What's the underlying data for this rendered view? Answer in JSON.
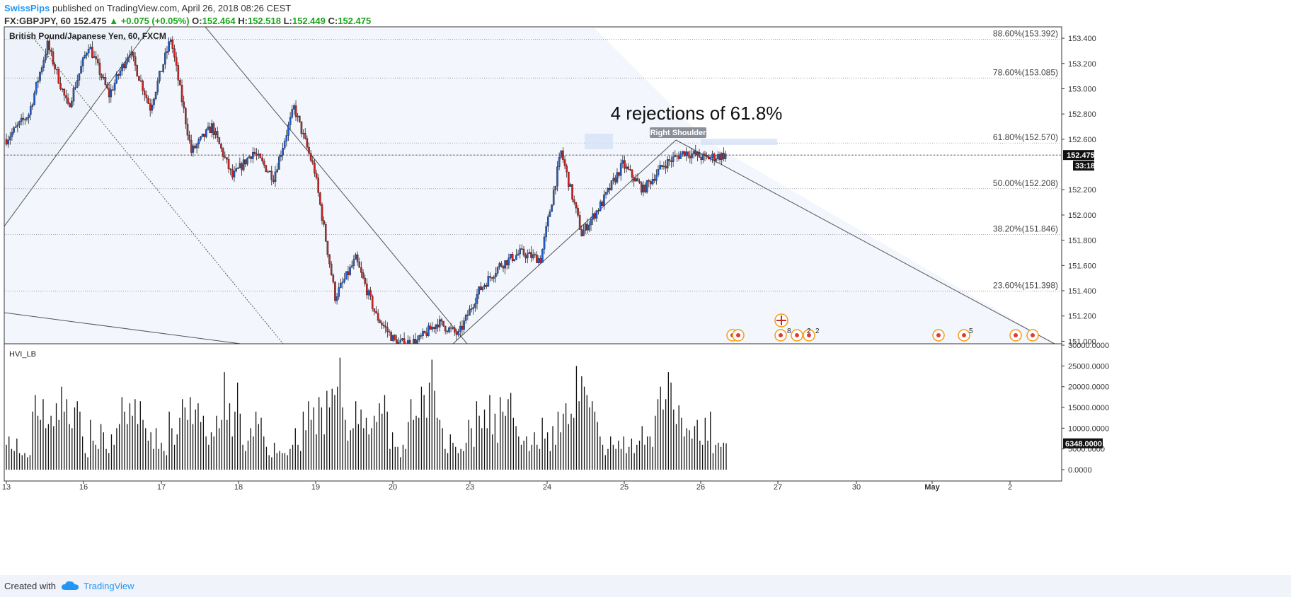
{
  "header": {
    "author": "SwissPips",
    "published_text": "published on TradingView.com, April 26, 2018 08:26 CEST",
    "symbol": "FX:GBPJPY, 60",
    "last": "152.475",
    "change": "+0.075 (+0.05%)",
    "o_label": "O:",
    "o": "152.464",
    "h_label": "H:",
    "h": "152.518",
    "l_label": "L:",
    "l": "152.449",
    "c_label": "C:",
    "c": "152.475"
  },
  "footer": {
    "created_with": "Created with",
    "brand": "TradingView"
  },
  "chart_data": [
    {
      "type": "candlestick",
      "title": "British Pound/Japanese Yen, 60, FXCM",
      "y_ticks": [
        "153.400",
        "153.200",
        "153.000",
        "152.800",
        "152.600",
        "152.200",
        "152.000",
        "151.800",
        "151.600",
        "151.400",
        "151.200",
        "151.000"
      ],
      "ylim": [
        150.98,
        153.49
      ],
      "x_ticks": [
        "13",
        "16",
        "17",
        "18",
        "19",
        "20",
        "23",
        "24",
        "25",
        "26",
        "27",
        "30",
        "May",
        "2"
      ],
      "last_price_label": "152.475",
      "countdown_label": "33:18",
      "fib_levels": [
        {
          "level": 153.392,
          "label": "88.60%(153.392)"
        },
        {
          "level": 153.085,
          "label": "78.60%(153.085)"
        },
        {
          "level": 152.57,
          "label": "61.80%(152.570)"
        },
        {
          "level": 152.208,
          "label": "50.00%(152.208)"
        },
        {
          "level": 151.846,
          "label": "38.20%(151.846)"
        },
        {
          "level": 151.398,
          "label": "23.60%(151.398)"
        }
      ],
      "annotation": "4 rejections of 61.8%",
      "pattern_label": "Right Shoulder",
      "candle_path_points": [
        [
          0,
          152.6
        ],
        [
          12,
          152.8
        ],
        [
          22,
          153.35
        ],
        [
          33,
          152.85
        ],
        [
          44,
          153.35
        ],
        [
          55,
          152.95
        ],
        [
          66,
          153.3
        ],
        [
          77,
          152.85
        ],
        [
          88,
          153.4
        ],
        [
          99,
          152.5
        ],
        [
          110,
          152.7
        ],
        [
          121,
          152.3
        ],
        [
          132,
          152.5
        ],
        [
          143,
          152.3
        ],
        [
          154,
          152.85
        ],
        [
          165,
          152.35
        ],
        [
          176,
          151.35
        ],
        [
          187,
          151.65
        ],
        [
          198,
          151.2
        ],
        [
          209,
          150.98
        ],
        [
          220,
          151.0
        ],
        [
          231,
          151.15
        ],
        [
          242,
          151.05
        ],
        [
          253,
          151.4
        ],
        [
          264,
          151.6
        ],
        [
          275,
          151.7
        ],
        [
          286,
          151.65
        ],
        [
          297,
          152.5
        ],
        [
          308,
          151.85
        ],
        [
          319,
          152.1
        ],
        [
          330,
          152.4
        ],
        [
          341,
          152.2
        ],
        [
          352,
          152.4
        ],
        [
          363,
          152.5
        ],
        [
          374,
          152.45
        ],
        [
          385,
          152.475
        ]
      ],
      "event_markers": [
        {
          "day_pos": 0.89,
          "label": ""
        },
        {
          "day_pos": 0.92,
          "label": "8"
        },
        {
          "day_pos": 0.96,
          "label": "2"
        },
        {
          "day_pos": 1.0,
          "label": "2"
        }
      ]
    },
    {
      "type": "bar",
      "title": "HVI_LB",
      "y_ticks": [
        "30000.0000",
        "25000.0000",
        "20000.0000",
        "15000.0000",
        "10000.0000",
        "5000.0000",
        "0.0000"
      ],
      "ylim": [
        0,
        30000
      ],
      "last_value_label": "6348.0000",
      "values": [
        6000,
        8000,
        5000,
        4500,
        7500,
        4000,
        3500,
        4000,
        3000,
        3500,
        14000,
        18000,
        13000,
        12000,
        17000,
        10000,
        11000,
        13000,
        10500,
        16000,
        12000,
        20000,
        14000,
        17000,
        11000,
        10000,
        15000,
        16500,
        14000,
        8000,
        4000,
        3000,
        12000,
        7000,
        6000,
        5000,
        11000,
        9000,
        5000,
        4000,
        8500,
        6000,
        10000,
        11000,
        17500,
        14000,
        11000,
        16000,
        13000,
        17000,
        11000,
        16500,
        12000,
        10000,
        7000,
        9000,
        5000,
        10000,
        5000,
        6500,
        4500,
        3500,
        14000,
        10000,
        6000,
        8500,
        12500,
        17000,
        15000,
        12000,
        17500,
        11000,
        14500,
        16000,
        11500,
        13000,
        8000,
        6000,
        9000,
        8000,
        13000,
        10000,
        12000,
        23500,
        12000,
        16000,
        8000,
        14000,
        21000,
        13500,
        6000,
        4500,
        7000,
        10000,
        8000,
        14000,
        11000,
        12500,
        8000,
        5500,
        3500,
        3000,
        6500,
        4000,
        4500,
        4000,
        4000,
        3500,
        5000,
        6000,
        10000,
        6000,
        4500,
        14000,
        9500,
        16500,
        12000,
        15000,
        8500,
        17500,
        15000,
        8500,
        19000,
        15000,
        19500,
        18000,
        20000,
        27000,
        15000,
        12000,
        7000,
        9500,
        10000,
        16500,
        11000,
        14500,
        10000,
        12500,
        8500,
        10000,
        13000,
        11500,
        16000,
        13500,
        18000,
        14000,
        5000,
        9000,
        5500,
        5500,
        3000,
        6000,
        5000,
        11500,
        17000,
        12000,
        13000,
        12500,
        20000,
        18000,
        12500,
        21000,
        26500,
        19000,
        12500,
        12000,
        10000,
        5000,
        4000,
        8500,
        6500,
        5500,
        4000,
        5000,
        4500,
        6500,
        12000,
        10000,
        5500,
        16500,
        13000,
        10000,
        14500,
        10000,
        18000,
        8500,
        13500,
        6500,
        17500,
        14000,
        13000,
        17000,
        18500,
        12500,
        10500,
        8000,
        6000,
        7000,
        8000,
        4500,
        6000,
        9000,
        6000,
        5000,
        12500,
        7500,
        9000,
        4500,
        10500,
        6000,
        14000,
        9000,
        13500,
        16000,
        11000,
        13500,
        12500,
        25000,
        16500,
        22500,
        20000,
        18000,
        15000,
        16500,
        14000,
        11500,
        8000,
        6000,
        3500,
        5000,
        8000,
        6000,
        5000,
        7000,
        5000,
        8000,
        4000,
        5500,
        7500,
        4000,
        6000,
        7000,
        10500,
        6000,
        8000,
        8000,
        5500,
        13000,
        17000,
        20000,
        14500,
        17000,
        23500,
        21000,
        14500,
        11000,
        15500,
        12500,
        8000,
        10000,
        9500,
        7500,
        10500,
        12000,
        7000,
        6000,
        12500,
        7000,
        14000,
        4000,
        6000,
        6500,
        5500,
        6500,
        6348
      ]
    }
  ]
}
